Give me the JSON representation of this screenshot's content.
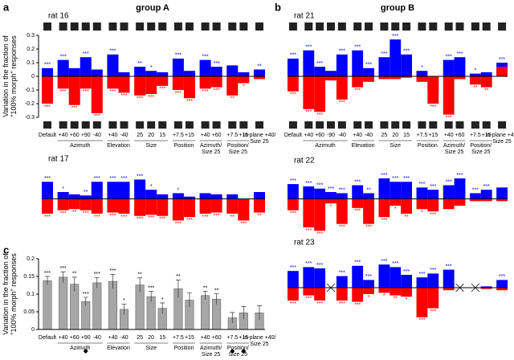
{
  "panels": [
    {
      "label": "a",
      "title": "group A"
    },
    {
      "label": "b",
      "title": "group B"
    },
    {
      "label": "c"
    }
  ],
  "chart_data": [
    {
      "type": "bar",
      "title": "rat 16",
      "ylabel": "Variation in the fraction of \"100% morph\" responses",
      "ylim": [
        -0.3,
        0.3
      ],
      "yticks": [
        0.3,
        0.2,
        0.1,
        0,
        -0.1,
        -0.2,
        -0.3
      ],
      "groups": [
        {
          "categories": [
            "Default"
          ]
        },
        {
          "label": "Azimuth",
          "categories": [
            "+40",
            "+60",
            "+90",
            "-40"
          ]
        },
        {
          "label": "Elevation",
          "categories": [
            "+40",
            "-40"
          ]
        },
        {
          "label": "Size",
          "categories": [
            "25",
            "20",
            "15"
          ]
        },
        {
          "label": "Position",
          "categories": [
            "+7.5",
            "+15"
          ]
        },
        {
          "label": "Azimuth/ Size 25",
          "categories": [
            "+40",
            "+60"
          ]
        },
        {
          "label": "Position/ Size 25",
          "categories": [
            "+7.5",
            "+15"
          ]
        },
        {
          "categories": [
            "In-plane +40/ Size 25"
          ]
        }
      ],
      "series": [
        {
          "color": "#0000ff",
          "values": [
            0.06,
            0.12,
            0.06,
            0.14,
            0.05,
            0.16,
            0.03,
            0.07,
            0.04,
            0.03,
            0.13,
            0.04,
            0.12,
            0.07,
            0.08,
            0.03,
            0.05
          ],
          "stars": [
            "***",
            "***",
            null,
            "***",
            null,
            "***",
            null,
            "**",
            "*",
            null,
            "***",
            null,
            "***",
            "***",
            null,
            null,
            "**"
          ]
        },
        {
          "color": "#ff0000",
          "values": [
            -0.2,
            -0.09,
            -0.21,
            -0.09,
            -0.27,
            -0.09,
            -0.12,
            -0.14,
            -0.13,
            -0.07,
            -0.1,
            -0.16,
            -0.09,
            -0.08,
            -0.14,
            -0.05,
            -0.02
          ],
          "stars": [
            "***",
            "***",
            "***",
            "***",
            "***",
            "***",
            "***",
            "***",
            "***",
            "***",
            "***",
            "***",
            "***",
            "***",
            "**",
            "*",
            null
          ]
        }
      ]
    },
    {
      "type": "bar",
      "title": "rat 17",
      "ylim": [
        -0.3,
        0.3
      ],
      "series": [
        {
          "color": "#0000ff",
          "values": [
            0.15,
            0.06,
            0.04,
            0.03,
            0.15,
            0.15,
            0.15,
            0.17,
            0.08,
            0.04,
            0.05,
            0.02,
            0.05,
            0.04,
            0.04,
            -0.06,
            0.06
          ],
          "stars": [
            "***",
            "*",
            null,
            "**",
            "***",
            "***",
            "***",
            "***",
            "*",
            null,
            "*",
            null,
            null,
            null,
            null,
            null,
            null
          ]
        },
        {
          "color": "#ff0000",
          "values": [
            -0.13,
            -0.1,
            -0.09,
            -0.1,
            -0.13,
            -0.12,
            -0.13,
            -0.15,
            -0.14,
            -0.15,
            -0.19,
            -0.16,
            -0.13,
            -0.12,
            -0.13,
            -0.19,
            -0.12
          ],
          "stars": [
            "***",
            "***",
            "**",
            "***",
            "***",
            "***",
            "***",
            "***",
            "***",
            "***",
            "***",
            "***",
            "***",
            "***",
            "**",
            "***",
            "**"
          ]
        }
      ]
    },
    {
      "type": "bar",
      "ylabel": "Variation in the fraction of \"100% morph\" responses",
      "ylim": [
        0,
        0.2
      ],
      "yticks": [
        0,
        0.05,
        0.1,
        0.15,
        0.2
      ],
      "groups": [
        {
          "categories": [
            "Default"
          ]
        },
        {
          "label": "Azimuth",
          "categories": [
            "+40",
            "+60",
            "+90",
            "-40"
          ]
        },
        {
          "label": "Elevation",
          "categories": [
            "+40",
            "-40"
          ]
        },
        {
          "label": "Size",
          "categories": [
            "25",
            "20",
            "15"
          ]
        },
        {
          "label": "Position",
          "categories": [
            "+7.5",
            "+15"
          ]
        },
        {
          "label": "Azimuth/ Size 25",
          "categories": [
            "+40",
            "+60"
          ]
        },
        {
          "label": "Position/ Size 25",
          "categories": [
            "+7.5",
            "+15"
          ]
        },
        {
          "categories": [
            "In-plane +40/ Size 25"
          ]
        }
      ],
      "series": [
        {
          "color": "#a6a6a6",
          "values": [
            0.138,
            0.148,
            0.128,
            0.079,
            0.132,
            0.136,
            0.057,
            0.126,
            0.093,
            0.06,
            0.115,
            0.083,
            0.096,
            0.086,
            0.033,
            0.047,
            0.047
          ],
          "errors": [
            0.012,
            0.015,
            0.02,
            0.012,
            0.015,
            0.02,
            0.015,
            0.02,
            0.015,
            0.015,
            0.025,
            0.02,
            0.012,
            0.015,
            0.015,
            0.018,
            0.02
          ],
          "stars": [
            "***",
            "***",
            "**",
            "***",
            "***",
            "***",
            "*",
            "**",
            "***",
            "*",
            "**",
            null,
            "**",
            "**",
            null,
            null,
            null
          ]
        }
      ]
    },
    {
      "type": "bar",
      "title": "rat 21",
      "ylim": [
        -0.3,
        0.3
      ],
      "groups": [
        {
          "categories": [
            "Default"
          ]
        },
        {
          "label": "Azimuth",
          "categories": [
            "+40",
            "+60",
            "-90",
            "-40"
          ]
        },
        {
          "label": "Elevation",
          "categories": [
            "+40",
            "-40"
          ]
        },
        {
          "label": "Size",
          "categories": [
            "25",
            "20",
            "15"
          ]
        },
        {
          "label": "Position",
          "categories": [
            "+7.5",
            "+15"
          ]
        },
        {
          "label": "Azimuth/ Size 25",
          "categories": [
            "+40",
            "+60"
          ]
        },
        {
          "label": "Position/ Size 25",
          "categories": [
            "+7.5",
            "+15"
          ]
        },
        {
          "categories": [
            "In-plane +40/ Size 25"
          ]
        }
      ],
      "series": [
        {
          "color": "#0000ff",
          "values": [
            0.13,
            0.19,
            0.07,
            0.04,
            0.16,
            0.19,
            0.06,
            0.14,
            0.27,
            0.16,
            0.04,
            -0.11,
            0.12,
            0.14,
            0.02,
            0.03,
            0.1
          ],
          "stars": [
            "***",
            "***",
            "***",
            null,
            "***",
            "***",
            "***",
            "***",
            "***",
            "***",
            "*",
            null,
            "***",
            "***",
            "*",
            null,
            "***"
          ]
        },
        {
          "color": "#ff0000",
          "values": [
            -0.11,
            -0.24,
            -0.26,
            -0.03,
            -0.17,
            -0.08,
            -0.04,
            -0.02,
            -0.02,
            -0.01,
            -0.04,
            -0.2,
            -0.28,
            -0.02,
            -0.06,
            -0.08,
            0.07
          ],
          "stars": [
            "***",
            "***",
            "***",
            null,
            "***",
            "***",
            null,
            null,
            null,
            null,
            null,
            "***",
            "***",
            null,
            "**",
            "**",
            null
          ]
        }
      ]
    },
    {
      "type": "bar",
      "title": "rat 22",
      "ylim": [
        -0.3,
        0.3
      ],
      "series": [
        {
          "color": "#0000ff",
          "values": [
            0.13,
            0.11,
            0.09,
            0.06,
            0.05,
            0.12,
            0.05,
            0.18,
            0.15,
            0.15,
            0.1,
            0.08,
            0.12,
            0.18,
            0.05,
            0.08,
            0.1
          ],
          "stars": [
            "***",
            "***",
            "***",
            "***",
            "***",
            "***",
            "**",
            "***",
            "***",
            "***",
            "***",
            "***",
            "***",
            "***",
            "***",
            "***",
            null
          ]
        },
        {
          "color": "#ff0000",
          "values": [
            -0.1,
            -0.25,
            -0.28,
            -0.04,
            -0.22,
            -0.08,
            -0.22,
            -0.16,
            -0.06,
            -0.13,
            -0.09,
            -0.11,
            -0.09,
            -0.06,
            -0.02,
            -0.02,
            -0.02
          ],
          "stars": [
            "***",
            "***",
            "***",
            "*",
            "***",
            "***",
            "***",
            "***",
            "*",
            "**",
            "*",
            "***",
            null,
            null,
            null,
            null,
            null
          ]
        }
      ]
    },
    {
      "type": "bar",
      "title": "rat 23",
      "ylim": [
        -0.3,
        0.3
      ],
      "series": [
        {
          "color": "#0000ff",
          "values": [
            0.13,
            0.16,
            0.15,
            null,
            0.09,
            0.17,
            0.06,
            0.18,
            0.16,
            0.1,
            0.08,
            0.11,
            0.14,
            null,
            null,
            0.01,
            0.06
          ],
          "stars": [
            "***",
            "***",
            "***",
            null,
            "***",
            "***",
            "***",
            "***",
            "***",
            "***",
            "***",
            "***",
            "***",
            null,
            null,
            null,
            "***"
          ]
        },
        {
          "color": "#ff0000",
          "values": [
            -0.1,
            -0.06,
            -0.1,
            null,
            -0.1,
            -0.11,
            -0.05,
            -0.04,
            -0.06,
            -0.07,
            -0.23,
            -0.16,
            -0.02,
            null,
            null,
            -0.01,
            -0.02
          ],
          "stars": [
            "***",
            "***",
            "***",
            null,
            "***",
            "***",
            "*",
            "*",
            "**",
            "*",
            "***",
            "***",
            null,
            null,
            null,
            null,
            null
          ]
        }
      ]
    }
  ]
}
